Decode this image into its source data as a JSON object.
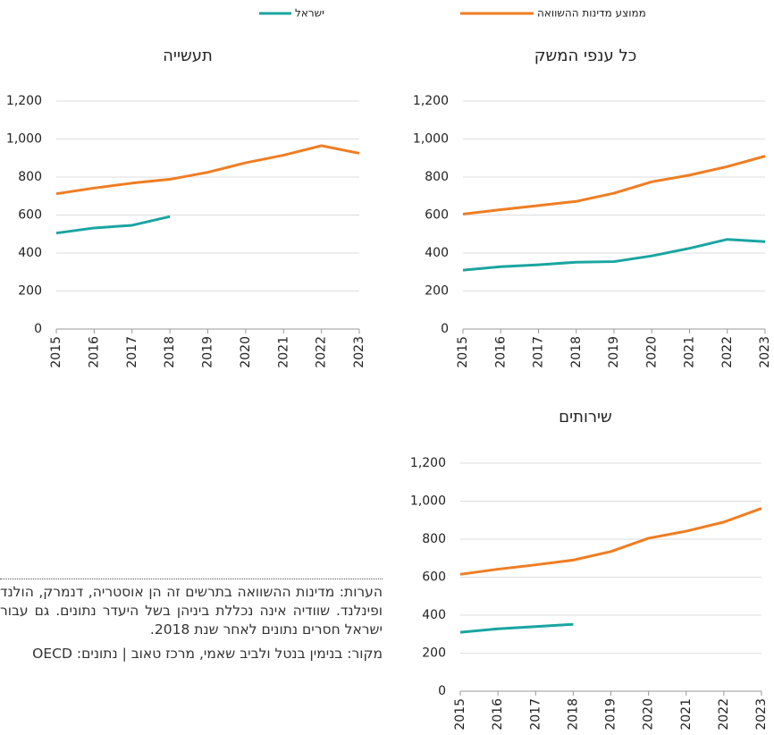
{
  "legend": [
    {
      "name": "ממוצע מדינות ההשוואה",
      "color": "#ef7d22"
    },
    {
      "name": "ישראל",
      "color": "#1aa5a1"
    }
  ],
  "chart_data": [
    {
      "type": "line",
      "title": "כל ענפי המשק",
      "categories": [
        "2015",
        "2016",
        "2017",
        "2018",
        "2019",
        "2020",
        "2021",
        "2022",
        "2023"
      ],
      "series": [
        {
          "values": [
            605,
            628,
            650,
            672,
            715,
            775,
            810,
            855,
            910
          ]
        },
        {
          "values": [
            310,
            328,
            338,
            352,
            355,
            385,
            425,
            472,
            460
          ]
        }
      ],
      "ylim": [
        0,
        1200
      ],
      "yticks": [
        0,
        200,
        400,
        600,
        800,
        {
          "value": 1000,
          "label": "1,000"
        },
        {
          "value": 1200,
          "label": "1,200"
        }
      ],
      "grid": true
    },
    {
      "type": "line",
      "title": "תעשייה",
      "categories": [
        "2015",
        "2016",
        "2017",
        "2018",
        "2019",
        "2020",
        "2021",
        "2022",
        "2023"
      ],
      "series": [
        {
          "values": [
            712,
            742,
            768,
            788,
            825,
            875,
            915,
            965,
            925
          ]
        },
        {
          "values": [
            505,
            532,
            546,
            592,
            null,
            null,
            null,
            null,
            null
          ]
        }
      ],
      "ylim": [
        0,
        1200
      ],
      "yticks": [
        0,
        200,
        400,
        600,
        800,
        {
          "value": 1000,
          "label": "1,000"
        },
        {
          "value": 1200,
          "label": "1,200"
        }
      ],
      "grid": true
    },
    {
      "type": "line",
      "title": "שירותים",
      "categories": [
        "2015",
        "2016",
        "2017",
        "2018",
        "2019",
        "2020",
        "2021",
        "2022",
        "2023"
      ],
      "series": [
        {
          "values": [
            615,
            642,
            665,
            690,
            735,
            805,
            842,
            890,
            962
          ]
        },
        {
          "values": [
            310,
            328,
            340,
            352,
            null,
            null,
            null,
            null,
            null
          ]
        }
      ],
      "ylim": [
        0,
        1200
      ],
      "yticks": [
        0,
        200,
        400,
        600,
        800,
        {
          "value": 1000,
          "label": "1,000"
        },
        {
          "value": 1200,
          "label": "1,200"
        }
      ],
      "grid": true
    }
  ],
  "notes": "הערות: מדינות ההשוואה בתרשים זה הן אוסטריה, דנמרק, הולנד ופינלנד. שוודיה אינה נכללת ביניהן בשל היעדר נתונים. גם עבור ישראל חסרים נתונים לאחר שנת 2018.",
  "source": "מקור: בנימין בנטל ולביב שאמי, מרכז טאוב | נתונים: OECD"
}
